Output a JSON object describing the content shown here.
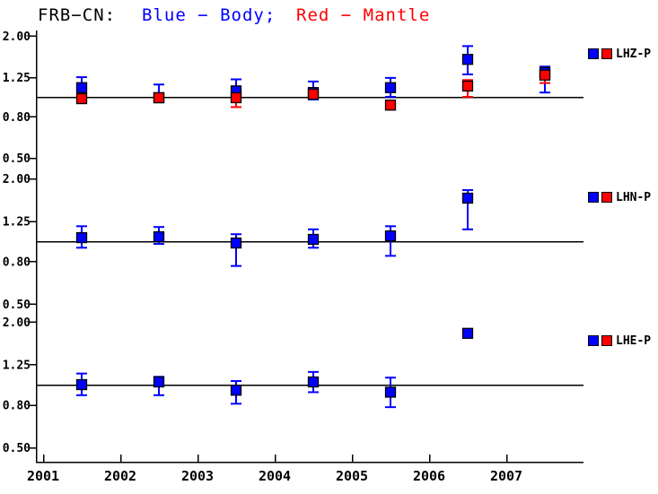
{
  "title": {
    "segments": [
      {
        "text": "FRB−CN:",
        "color": "#000000"
      },
      {
        "text": "Blue − Body;",
        "color": "#0000ff"
      },
      {
        "text": "Red − Mantle",
        "color": "#ff0000"
      }
    ]
  },
  "colors": {
    "body": "#0000ff",
    "mantle": "#ff0000",
    "axis": "#000000",
    "background": "#ffffff"
  },
  "x_axis": {
    "ticks": [
      2001,
      2002,
      2003,
      2004,
      2005,
      2006,
      2007
    ],
    "tick_labels": [
      "2001",
      "2002",
      "2003",
      "2004",
      "2005",
      "2006",
      "2007"
    ],
    "range": [
      2000.9,
      2008.0
    ]
  },
  "chart_data": [
    {
      "type": "scatter",
      "label": "LHZ-P",
      "yscale": "log",
      "ref_line": 1.0,
      "yticks": [
        2.0,
        1.25,
        0.8,
        0.5
      ],
      "ytick_labels": [
        "2.00",
        "1.25",
        "0.80",
        "0.50"
      ],
      "series": [
        {
          "name": "Body",
          "color": "#0000ff",
          "x": [
            2001.5,
            2002.5,
            2003.5,
            2004.5,
            2005.5,
            2006.5,
            2007.5
          ],
          "y": [
            1.11,
            0.99,
            1.07,
            1.05,
            1.11,
            1.53,
            1.32
          ],
          "err_hi": [
            1.25,
            1.15,
            1.22,
            1.19,
            1.24,
            1.78,
            1.41
          ],
          "err_lo": [
            1.0,
            0.94,
            0.96,
            0.97,
            1.0,
            1.29,
            1.05
          ]
        },
        {
          "name": "Mantle",
          "color": "#ff0000",
          "x": [
            2001.5,
            2002.5,
            2003.5,
            2004.5,
            2005.5,
            2006.5,
            2007.5
          ],
          "y": [
            0.98,
            0.99,
            0.99,
            1.03,
            0.91,
            1.13,
            1.28
          ],
          "err_hi": [
            1.03,
            1.03,
            1.04,
            1.08,
            0.95,
            1.21,
            1.34
          ],
          "err_lo": [
            0.93,
            0.95,
            0.89,
            0.98,
            0.87,
            1.0,
            1.17
          ]
        }
      ]
    },
    {
      "type": "scatter",
      "label": "LHN-P",
      "yscale": "log",
      "ref_line": 1.0,
      "yticks": [
        2.0,
        1.25,
        0.8,
        0.5
      ],
      "ytick_labels": [
        "2.00",
        "1.25",
        "0.80",
        "0.50"
      ],
      "series": [
        {
          "name": "Body",
          "color": "#0000ff",
          "x": [
            2001.5,
            2002.5,
            2003.5,
            2004.5,
            2005.5,
            2006.5
          ],
          "y": [
            1.04,
            1.05,
            0.98,
            1.02,
            1.06,
            1.61
          ],
          "err_hi": [
            1.18,
            1.17,
            1.08,
            1.14,
            1.18,
            1.76
          ],
          "err_lo": [
            0.93,
            0.97,
            0.76,
            0.93,
            0.85,
            1.14
          ]
        }
      ]
    },
    {
      "type": "scatter",
      "label": "LHE-P",
      "yscale": "log",
      "ref_line": 1.0,
      "yticks": [
        2.0,
        1.25,
        0.8,
        0.5
      ],
      "ytick_labels": [
        "2.00",
        "1.25",
        "0.80",
        "0.50"
      ],
      "series": [
        {
          "name": "Body",
          "color": "#0000ff",
          "x": [
            2001.5,
            2002.5,
            2003.5,
            2004.5,
            2005.5,
            2006.5
          ],
          "y": [
            1.0,
            1.03,
            0.94,
            1.03,
            0.92,
            1.76
          ],
          "err_hi": [
            1.13,
            1.09,
            1.04,
            1.15,
            1.08,
            1.8
          ],
          "err_lo": [
            0.89,
            0.89,
            0.81,
            0.92,
            0.78,
            1.71
          ]
        }
      ]
    }
  ]
}
